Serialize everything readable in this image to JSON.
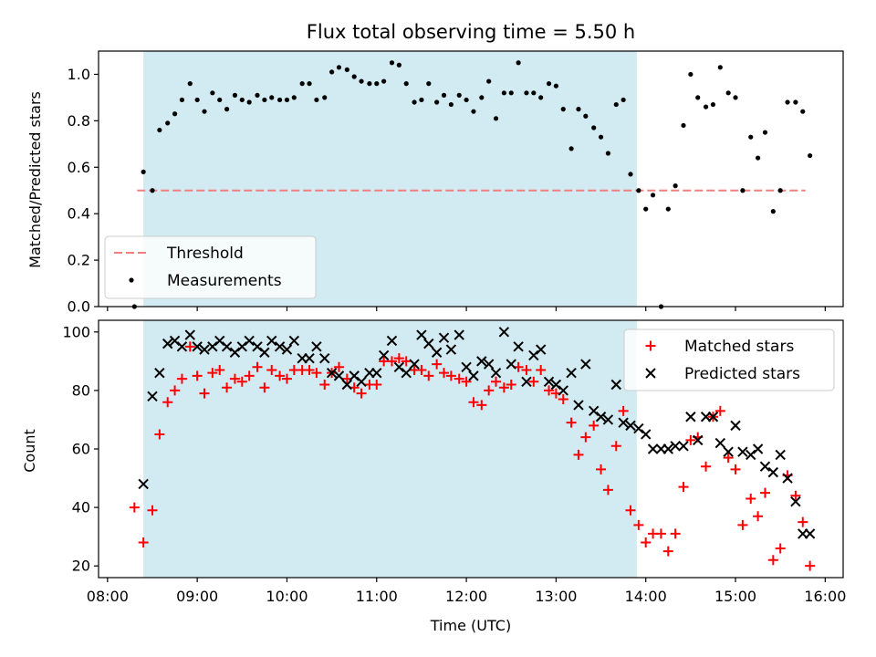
{
  "chart_data": [
    {
      "type": "scatter",
      "title": "Flux total observing time = 5.50 h",
      "ylabel": "Matched/Predicted stars",
      "xlabel": "",
      "xlim": [
        7.9,
        16.2
      ],
      "ylim": [
        0.0,
        1.1
      ],
      "yticks": [
        0.0,
        0.2,
        0.4,
        0.6,
        0.8,
        1.0
      ],
      "ytick_labels": [
        "0.0",
        "0.2",
        "0.4",
        "0.6",
        "0.8",
        "1.0"
      ],
      "grid": false,
      "legend_position": "lower-left",
      "shaded_interval": {
        "start": 8.4,
        "end": 13.9,
        "color": "#add8e6"
      },
      "threshold": {
        "name": "Threshold",
        "value": 0.5,
        "x": [
          8.33,
          15.78
        ],
        "color": "#f08080",
        "style": "dashed"
      },
      "series": [
        {
          "name": "Measurements",
          "marker": "dot",
          "color": "#000000",
          "x": [
            8.3,
            8.4,
            8.5,
            8.58,
            8.67,
            8.75,
            8.83,
            8.92,
            9.0,
            9.08,
            9.17,
            9.25,
            9.33,
            9.42,
            9.5,
            9.58,
            9.67,
            9.75,
            9.83,
            9.92,
            10.0,
            10.08,
            10.17,
            10.25,
            10.33,
            10.42,
            10.5,
            10.58,
            10.67,
            10.75,
            10.83,
            10.92,
            11.0,
            11.08,
            11.17,
            11.25,
            11.33,
            11.42,
            11.5,
            11.58,
            11.67,
            11.75,
            11.83,
            11.92,
            12.0,
            12.08,
            12.17,
            12.25,
            12.33,
            12.42,
            12.5,
            12.58,
            12.67,
            12.75,
            12.83,
            12.92,
            13.0,
            13.08,
            13.17,
            13.25,
            13.33,
            13.42,
            13.5,
            13.58,
            13.67,
            13.75,
            13.83,
            13.92,
            14.0,
            14.08,
            14.17,
            14.25,
            14.33,
            14.42,
            14.5,
            14.58,
            14.67,
            14.75,
            14.83,
            14.92,
            15.0,
            15.08,
            15.17,
            15.25,
            15.33,
            15.42,
            15.5,
            15.58,
            15.67,
            15.75,
            15.83
          ],
          "y": [
            0.0,
            0.58,
            0.5,
            0.76,
            0.79,
            0.83,
            0.89,
            0.96,
            0.89,
            0.84,
            0.92,
            0.89,
            0.85,
            0.91,
            0.89,
            0.88,
            0.91,
            0.89,
            0.9,
            0.89,
            0.89,
            0.9,
            0.96,
            0.96,
            0.89,
            0.9,
            1.01,
            1.03,
            1.02,
            0.99,
            0.97,
            0.96,
            0.96,
            0.97,
            1.05,
            1.04,
            0.96,
            0.88,
            0.89,
            0.96,
            0.88,
            0.91,
            0.87,
            0.91,
            0.89,
            0.84,
            0.9,
            0.97,
            0.81,
            0.92,
            0.92,
            1.05,
            0.92,
            0.92,
            0.9,
            0.96,
            0.95,
            0.85,
            0.68,
            0.85,
            0.82,
            0.77,
            0.73,
            0.66,
            0.87,
            0.89,
            0.57,
            0.5,
            0.42,
            0.48,
            0.0,
            0.42,
            0.52,
            0.78,
            1.0,
            0.9,
            0.86,
            0.87,
            1.03,
            0.92,
            0.9,
            0.5,
            0.73,
            0.64,
            0.75,
            0.41,
            0.5,
            0.88,
            0.88,
            0.84,
            0.65
          ]
        }
      ]
    },
    {
      "type": "scatter",
      "title": "",
      "ylabel": "Count",
      "xlabel": "Time (UTC)",
      "xlim": [
        7.9,
        16.2
      ],
      "ylim": [
        16,
        104
      ],
      "yticks": [
        20,
        40,
        60,
        80,
        100
      ],
      "ytick_labels": [
        "20",
        "40",
        "60",
        "80",
        "100"
      ],
      "xticks": [
        8,
        9,
        10,
        11,
        12,
        13,
        14,
        15,
        16
      ],
      "xtick_labels": [
        "08:00",
        "09:00",
        "10:00",
        "11:00",
        "12:00",
        "13:00",
        "14:00",
        "15:00",
        "16:00"
      ],
      "grid": false,
      "legend_position": "upper-right",
      "shaded_interval": {
        "start": 8.4,
        "end": 13.9,
        "color": "#add8e6"
      },
      "series": [
        {
          "name": "Matched stars",
          "marker": "plus",
          "color": "#ff0000",
          "x": [
            8.3,
            8.4,
            8.5,
            8.58,
            8.67,
            8.75,
            8.83,
            8.92,
            9.0,
            9.08,
            9.17,
            9.25,
            9.33,
            9.42,
            9.5,
            9.58,
            9.67,
            9.75,
            9.83,
            9.92,
            10.0,
            10.08,
            10.17,
            10.25,
            10.33,
            10.42,
            10.5,
            10.58,
            10.67,
            10.75,
            10.83,
            10.92,
            11.0,
            11.08,
            11.17,
            11.25,
            11.33,
            11.42,
            11.5,
            11.58,
            11.67,
            11.75,
            11.83,
            11.92,
            12.0,
            12.08,
            12.17,
            12.25,
            12.33,
            12.42,
            12.5,
            12.58,
            12.67,
            12.75,
            12.83,
            12.92,
            13.0,
            13.08,
            13.17,
            13.25,
            13.33,
            13.42,
            13.5,
            13.58,
            13.67,
            13.75,
            13.83,
            13.92,
            14.0,
            14.08,
            14.17,
            14.25,
            14.33,
            14.42,
            14.5,
            14.58,
            14.67,
            14.75,
            14.83,
            14.92,
            15.0,
            15.08,
            15.17,
            15.25,
            15.33,
            15.42,
            15.5,
            15.58,
            15.67,
            15.75,
            15.83
          ],
          "y": [
            40,
            28,
            39,
            65,
            76,
            80,
            84,
            95,
            85,
            79,
            86,
            87,
            81,
            84,
            83,
            85,
            88,
            81,
            87,
            85,
            84,
            87,
            87,
            87,
            86,
            82,
            86,
            88,
            84,
            81,
            79,
            82,
            82,
            90,
            90,
            91,
            90,
            87,
            87,
            85,
            89,
            86,
            85,
            84,
            83,
            76,
            75,
            80,
            83,
            81,
            82,
            88,
            87,
            83,
            87,
            80,
            79,
            77,
            69,
            58,
            64,
            68,
            53,
            46,
            61,
            73,
            39,
            34,
            28,
            31,
            31,
            25,
            31,
            47,
            63,
            64,
            54,
            71,
            73,
            57,
            53,
            34,
            43,
            37,
            45,
            22,
            26,
            51,
            44,
            35,
            20
          ]
        },
        {
          "name": "Predicted stars",
          "marker": "x",
          "color": "#000000",
          "x": [
            8.4,
            8.5,
            8.58,
            8.67,
            8.75,
            8.83,
            8.92,
            9.0,
            9.08,
            9.17,
            9.25,
            9.33,
            9.42,
            9.5,
            9.58,
            9.67,
            9.75,
            9.83,
            9.92,
            10.0,
            10.08,
            10.17,
            10.25,
            10.33,
            10.42,
            10.5,
            10.58,
            10.67,
            10.75,
            10.83,
            10.92,
            11.0,
            11.08,
            11.17,
            11.25,
            11.33,
            11.42,
            11.5,
            11.58,
            11.67,
            11.75,
            11.83,
            11.92,
            12.0,
            12.08,
            12.17,
            12.25,
            12.33,
            12.42,
            12.5,
            12.58,
            12.67,
            12.75,
            12.83,
            12.92,
            13.0,
            13.08,
            13.17,
            13.25,
            13.33,
            13.42,
            13.5,
            13.58,
            13.67,
            13.75,
            13.83,
            13.92,
            14.0,
            14.08,
            14.17,
            14.25,
            14.33,
            14.42,
            14.5,
            14.58,
            14.67,
            14.75,
            14.83,
            14.92,
            15.0,
            15.08,
            15.17,
            15.25,
            15.33,
            15.42,
            15.5,
            15.58,
            15.67,
            15.75,
            15.83
          ],
          "y": [
            48,
            78,
            86,
            96,
            97,
            95,
            99,
            95,
            94,
            95,
            97,
            95,
            93,
            95,
            97,
            95,
            93,
            97,
            95,
            94,
            97,
            91,
            91,
            95,
            91,
            86,
            85,
            82,
            85,
            83,
            86,
            86,
            92,
            97,
            88,
            86,
            89,
            99,
            96,
            93,
            98,
            94,
            99,
            88,
            85,
            90,
            89,
            86,
            100,
            89,
            95,
            83,
            92,
            94,
            83,
            82,
            80,
            86,
            75,
            89,
            73,
            71,
            70,
            82,
            69,
            68,
            67,
            65,
            60,
            60,
            60,
            61,
            61,
            71,
            63,
            71,
            71,
            62,
            59,
            68,
            59,
            58,
            60,
            54,
            52,
            58,
            50,
            42,
            31,
            31
          ]
        }
      ]
    }
  ]
}
